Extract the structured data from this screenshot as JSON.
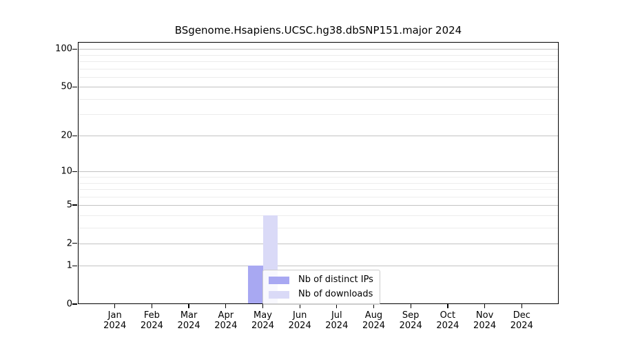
{
  "chart_data": {
    "type": "bar",
    "title": "BSgenome.Hsapiens.UCSC.hg38.dbSNP151.major 2024",
    "xlabel": "",
    "ylabel": "",
    "categories": [
      "Jan 2024",
      "Feb 2024",
      "Mar 2024",
      "Apr 2024",
      "May 2024",
      "Jun 2024",
      "Jul 2024",
      "Aug 2024",
      "Sep 2024",
      "Oct 2024",
      "Nov 2024",
      "Dec 2024"
    ],
    "x_tick_top_lines": [
      "Jan",
      "Feb",
      "Mar",
      "Apr",
      "May",
      "Jun",
      "Jul",
      "Aug",
      "Sep",
      "Oct",
      "Nov",
      "Dec"
    ],
    "x_tick_bottom_line": "2024",
    "series": [
      {
        "name": "Nb of distinct IPs",
        "color": "#a8a8f2",
        "values": [
          0,
          0,
          0,
          0,
          1,
          0,
          0,
          0,
          0,
          0,
          0,
          0
        ]
      },
      {
        "name": "Nb of downloads",
        "color": "#dadaf7",
        "values": [
          0,
          0,
          0,
          0,
          4,
          0,
          0,
          0,
          0,
          0,
          0,
          0
        ]
      }
    ],
    "y_scale": "log10(1+x)",
    "ylim": [
      0,
      113.8
    ],
    "y_major_ticks": [
      0,
      1,
      2,
      5,
      10,
      20,
      50,
      100
    ],
    "y_minor_gridlines": [
      3,
      4,
      6,
      7,
      8,
      9,
      30,
      40,
      60,
      70,
      80,
      90
    ],
    "grid": true,
    "legend_position": "inside lower-center",
    "legend": {
      "items": [
        {
          "label": "Nb of distinct IPs",
          "color": "#a8a8f2"
        },
        {
          "label": "Nb of downloads",
          "color": "#dadaf7"
        }
      ]
    }
  },
  "colors": {
    "distinct_ips_bar": "#a8a8f2",
    "downloads_bar": "#dadaf7",
    "major_gridline": "#c2c2c2",
    "minor_gridline": "#ececec",
    "axis_spine": "#000000",
    "background": "#ffffff"
  }
}
